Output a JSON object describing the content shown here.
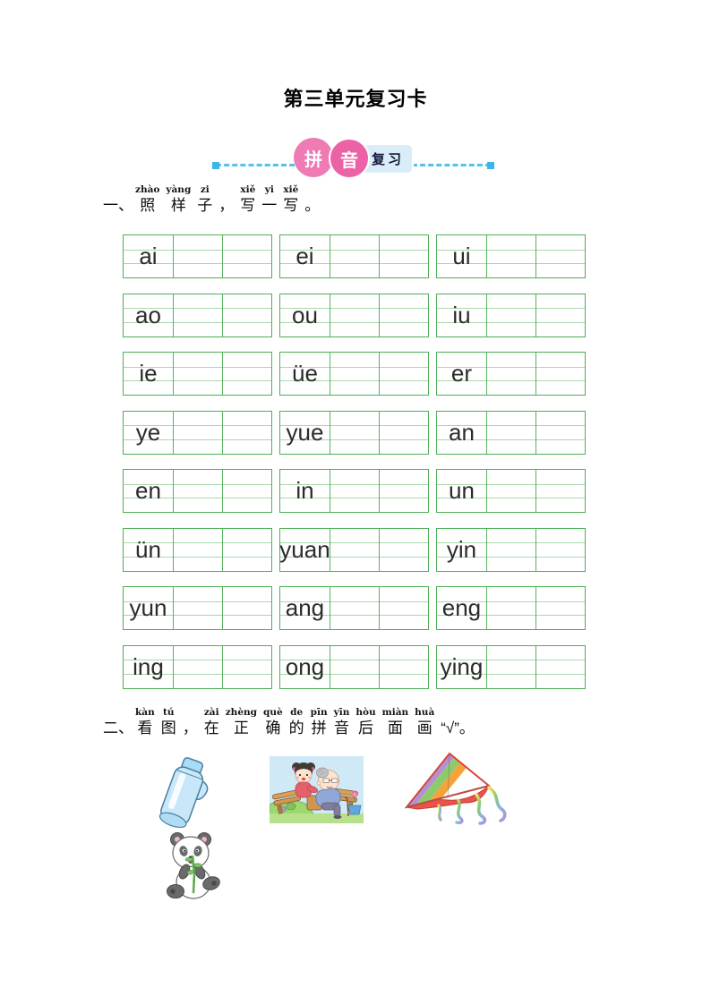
{
  "page_title": "第三单元复习卡",
  "banner": {
    "badge_left": "拼",
    "badge_right": "音",
    "label": "复习",
    "accent_pink": "#ee6fad",
    "accent_blue": "#4db9e8",
    "label_bg": "#d9edf8"
  },
  "section_one": {
    "number": "一、",
    "tokens": [
      {
        "h": "照",
        "p": "zhào"
      },
      {
        "h": "样",
        "p": "yàng"
      },
      {
        "h": "子",
        "p": "zi"
      },
      {
        "h": "，",
        "p": ""
      },
      {
        "h": "写",
        "p": "xiě"
      },
      {
        "h": "一",
        "p": "yi"
      },
      {
        "h": "写",
        "p": "xiě"
      },
      {
        "h": "。",
        "p": ""
      }
    ]
  },
  "writing_grid": {
    "columns_per_cell": 3,
    "line_color": "#4fae55",
    "inner_line_color": "#abd8ad",
    "rows": [
      [
        "ai",
        "ei",
        "ui"
      ],
      [
        "ao",
        "ou",
        "iu"
      ],
      [
        "ie",
        "üe",
        "er"
      ],
      [
        "ye",
        "yue",
        "an"
      ],
      [
        "en",
        "in",
        "un"
      ],
      [
        "ün",
        "yuan",
        "yin"
      ],
      [
        "yun",
        "ang",
        "eng"
      ],
      [
        "ing",
        "ong",
        "ying"
      ]
    ]
  },
  "section_two": {
    "number": "二、",
    "tokens": [
      {
        "h": "看",
        "p": "kàn"
      },
      {
        "h": "图",
        "p": "tú"
      },
      {
        "h": "，",
        "p": ""
      },
      {
        "h": "在",
        "p": "zài"
      },
      {
        "h": "正",
        "p": "zhèng"
      },
      {
        "h": "确",
        "p": "què"
      },
      {
        "h": "的",
        "p": "de"
      },
      {
        "h": "拼",
        "p": "pīn"
      },
      {
        "h": "音",
        "p": "yīn"
      },
      {
        "h": "后",
        "p": "hòu"
      },
      {
        "h": "面",
        "p": "miàn"
      },
      {
        "h": "画",
        "p": "huà"
      },
      {
        "h": "“√”。",
        "p": ""
      }
    ]
  },
  "pictures": [
    {
      "name": "thermos",
      "label": "blue thermos bottle"
    },
    {
      "name": "grandpa-and-girl",
      "label": "girl with grandfather on a bench"
    },
    {
      "name": "kite",
      "label": "rainbow striped kite with tails"
    },
    {
      "name": "panda",
      "label": "panda eating bamboo"
    }
  ]
}
